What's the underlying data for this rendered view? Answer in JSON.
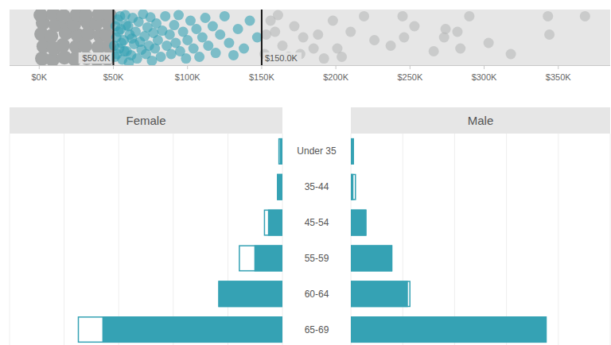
{
  "chart_data": [
    {
      "type": "scatter",
      "xlim": [
        -20000,
        385000
      ],
      "xticks": [
        {
          "value": 0,
          "label": "$0K"
        },
        {
          "value": 50000,
          "label": "$50K"
        },
        {
          "value": 100000,
          "label": "$100K"
        },
        {
          "value": 150000,
          "label": "$150K"
        },
        {
          "value": 200000,
          "label": "$200K"
        },
        {
          "value": 250000,
          "label": "$250K"
        },
        {
          "value": 300000,
          "label": "$300K"
        },
        {
          "value": 350000,
          "label": "$350K"
        }
      ],
      "ylim": [
        0,
        1
      ],
      "tick_labels": "x",
      "annotations": [
        {
          "value": 50000,
          "label": "$50.0K"
        },
        {
          "value": 150000,
          "label": "$150.0K"
        }
      ],
      "series": [
        {
          "color": "#a3a5a5",
          "x": [
            2000,
            3000,
            1500,
            2500,
            1000,
            9000,
            10000,
            8000,
            11000,
            9500,
            17000,
            16000,
            18000,
            17500,
            16500,
            24000,
            25000,
            26000,
            23500,
            25500,
            32000,
            31000,
            33000,
            32500,
            31500,
            39000,
            40000,
            41000,
            38500,
            40500,
            46000,
            47000,
            45500,
            46500,
            47500
          ],
          "values": [
            0.12,
            0.34,
            0.56,
            0.76,
            0.9,
            0.1,
            0.3,
            0.52,
            0.72,
            0.92,
            0.14,
            0.36,
            0.58,
            0.78,
            0.88,
            0.11,
            0.33,
            0.54,
            0.74,
            0.91,
            0.13,
            0.35,
            0.57,
            0.77,
            0.89,
            0.1,
            0.32,
            0.53,
            0.75,
            0.92,
            0.12,
            0.34,
            0.55,
            0.76,
            0.9
          ]
        },
        {
          "color": "#35a2b4",
          "x": [
            50500,
            51000,
            51500,
            52000,
            52500,
            53000,
            53500,
            54000,
            54500,
            55000,
            55500,
            56000,
            57000,
            57500,
            58000,
            58500,
            59000,
            60000,
            60500,
            61000,
            62000,
            62500,
            63000,
            64000,
            65000,
            66000,
            67000,
            68000,
            69000,
            70000,
            71000,
            72000,
            73000,
            74000,
            75000,
            76000,
            77000,
            78000,
            79000,
            80000,
            82000,
            83000,
            85000,
            86000,
            88000,
            89000,
            91000,
            92000,
            94000,
            95000,
            97000,
            99000,
            100000,
            102000,
            104000,
            106000,
            108000,
            110000,
            112000,
            114000,
            117000,
            119000,
            122000,
            125000,
            128000,
            131000,
            134000,
            138000,
            142000,
            147000
          ],
          "values": [
            0.35,
            0.15,
            0.7,
            0.5,
            0.2,
            0.82,
            0.6,
            0.3,
            0.88,
            0.65,
            0.4,
            0.1,
            0.45,
            0.25,
            0.9,
            0.72,
            0.25,
            0.7,
            0.05,
            0.55,
            0.18,
            0.48,
            0.85,
            0.38,
            0.6,
            0.12,
            0.78,
            0.42,
            0.28,
            0.92,
            0.52,
            0.2,
            0.68,
            0.35,
            0.86,
            0.08,
            0.58,
            0.3,
            0.75,
            0.45,
            0.15,
            0.62,
            0.88,
            0.35,
            0.55,
            0.2,
            0.72,
            0.4,
            0.9,
            0.25,
            0.6,
            0.12,
            0.45,
            0.8,
            0.3,
            0.65,
            0.15,
            0.5,
            0.85,
            0.35,
            0.7,
            0.22,
            0.55,
            0.88,
            0.4,
            0.18,
            0.65,
            0.3,
            0.8,
            0.5
          ]
        },
        {
          "color": "#b3b4b4",
          "x": [
            152000,
            153000,
            156000,
            159000,
            161000,
            164000,
            168000,
            172000,
            176000,
            178000,
            185000,
            188000,
            192000,
            198000,
            201000,
            204000,
            210000,
            219000,
            226000,
            237000,
            245000,
            246000,
            253000,
            266000,
            273000,
            274000,
            282000,
            284000,
            290000,
            303000,
            318000,
            343000,
            344000,
            368000
          ],
          "values": [
            0.2,
            0.55,
            0.8,
            0.6,
            0.9,
            0.35,
            0.15,
            0.7,
            0.2,
            0.5,
            0.3,
            0.55,
            0.12,
            0.8,
            0.3,
            0.15,
            0.6,
            0.88,
            0.45,
            0.35,
            0.88,
            0.5,
            0.7,
            0.25,
            0.5,
            0.65,
            0.6,
            0.3,
            0.88,
            0.4,
            0.2,
            0.88,
            0.55,
            0.88
          ]
        }
      ]
    },
    {
      "type": "bar",
      "orientation": "horizontal",
      "categories": [
        "Under 35",
        "35-44",
        "45-54",
        "55-59",
        "60-64",
        "65-69"
      ],
      "xlim": [
        0,
        100
      ],
      "xticks": [
        0,
        20,
        40,
        60,
        80,
        100
      ],
      "grid": true,
      "tick_labels": "y",
      "series": [
        {
          "name": "Female",
          "color": "#35a2b4",
          "values": [
            1,
            2,
            5.3,
            10.3,
            23.5,
            66
          ],
          "outline_values": [
            1.5,
            2,
            6.8,
            16,
            23.5,
            75
          ]
        },
        {
          "name": "Male",
          "color": "#35a2b4",
          "values": [
            1.2,
            1,
            6,
            16,
            22,
            75.5
          ],
          "outline_values": [
            1.2,
            2,
            6,
            16,
            23,
            75.5
          ]
        }
      ]
    }
  ]
}
